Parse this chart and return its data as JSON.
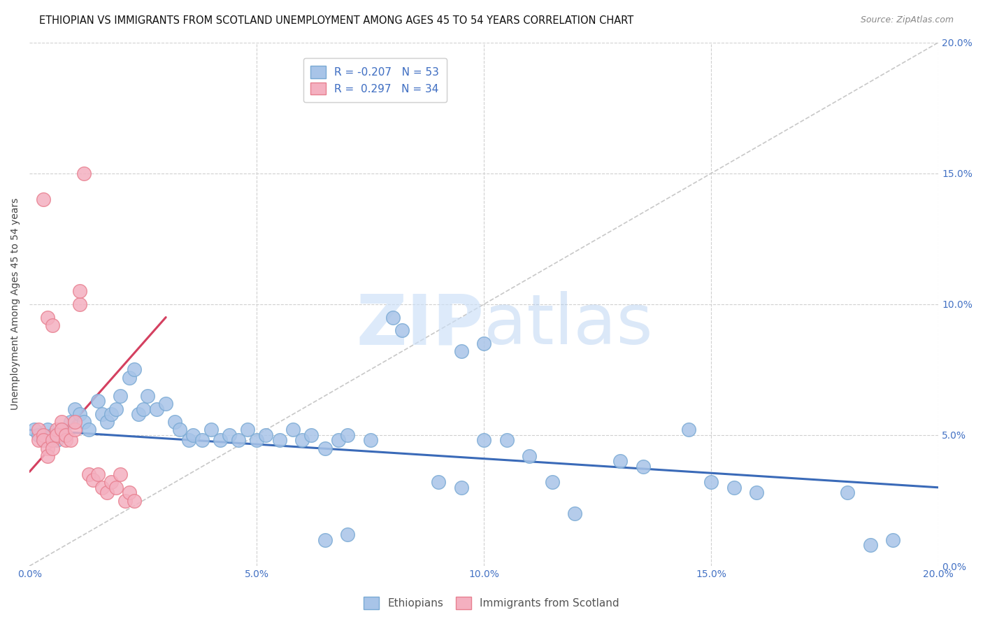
{
  "title": "ETHIOPIAN VS IMMIGRANTS FROM SCOTLAND UNEMPLOYMENT AMONG AGES 45 TO 54 YEARS CORRELATION CHART",
  "source": "Source: ZipAtlas.com",
  "ylabel_label": "Unemployment Among Ages 45 to 54 years",
  "xlim": [
    0.0,
    0.2
  ],
  "ylim": [
    0.0,
    0.2
  ],
  "tick_vals": [
    0.0,
    0.05,
    0.1,
    0.15,
    0.2
  ],
  "tick_labels": [
    "0.0%",
    "5.0%",
    "10.0%",
    "15.0%",
    "20.0%"
  ],
  "blue_line": [
    [
      0.0,
      0.052
    ],
    [
      0.2,
      0.03
    ]
  ],
  "pink_line": [
    [
      0.0,
      0.036
    ],
    [
      0.03,
      0.095
    ]
  ],
  "watermark_zip": "ZIP",
  "watermark_atlas": "atlas",
  "eth_scatter": [
    [
      0.001,
      0.052
    ],
    [
      0.002,
      0.05
    ],
    [
      0.003,
      0.048
    ],
    [
      0.004,
      0.052
    ],
    [
      0.005,
      0.05
    ],
    [
      0.006,
      0.048
    ],
    [
      0.007,
      0.052
    ],
    [
      0.008,
      0.05
    ],
    [
      0.009,
      0.055
    ],
    [
      0.01,
      0.06
    ],
    [
      0.011,
      0.058
    ],
    [
      0.012,
      0.055
    ],
    [
      0.013,
      0.052
    ],
    [
      0.015,
      0.063
    ],
    [
      0.016,
      0.058
    ],
    [
      0.017,
      0.055
    ],
    [
      0.018,
      0.058
    ],
    [
      0.019,
      0.06
    ],
    [
      0.02,
      0.065
    ],
    [
      0.022,
      0.072
    ],
    [
      0.023,
      0.075
    ],
    [
      0.024,
      0.058
    ],
    [
      0.025,
      0.06
    ],
    [
      0.026,
      0.065
    ],
    [
      0.028,
      0.06
    ],
    [
      0.03,
      0.062
    ],
    [
      0.032,
      0.055
    ],
    [
      0.033,
      0.052
    ],
    [
      0.035,
      0.048
    ],
    [
      0.036,
      0.05
    ],
    [
      0.038,
      0.048
    ],
    [
      0.04,
      0.052
    ],
    [
      0.042,
      0.048
    ],
    [
      0.044,
      0.05
    ],
    [
      0.046,
      0.048
    ],
    [
      0.048,
      0.052
    ],
    [
      0.05,
      0.048
    ],
    [
      0.052,
      0.05
    ],
    [
      0.055,
      0.048
    ],
    [
      0.058,
      0.052
    ],
    [
      0.06,
      0.048
    ],
    [
      0.062,
      0.05
    ],
    [
      0.065,
      0.045
    ],
    [
      0.068,
      0.048
    ],
    [
      0.07,
      0.05
    ],
    [
      0.075,
      0.048
    ],
    [
      0.08,
      0.095
    ],
    [
      0.082,
      0.09
    ],
    [
      0.095,
      0.082
    ],
    [
      0.1,
      0.085
    ],
    [
      0.1,
      0.048
    ],
    [
      0.105,
      0.048
    ],
    [
      0.11,
      0.042
    ],
    [
      0.115,
      0.032
    ],
    [
      0.12,
      0.02
    ],
    [
      0.145,
      0.052
    ],
    [
      0.155,
      0.03
    ],
    [
      0.16,
      0.028
    ],
    [
      0.18,
      0.028
    ],
    [
      0.19,
      0.01
    ],
    [
      0.065,
      0.01
    ],
    [
      0.07,
      0.012
    ],
    [
      0.09,
      0.032
    ],
    [
      0.095,
      0.03
    ],
    [
      0.13,
      0.04
    ],
    [
      0.135,
      0.038
    ],
    [
      0.15,
      0.032
    ],
    [
      0.185,
      0.008
    ]
  ],
  "sco_scatter": [
    [
      0.002,
      0.052
    ],
    [
      0.002,
      0.048
    ],
    [
      0.003,
      0.05
    ],
    [
      0.003,
      0.048
    ],
    [
      0.004,
      0.045
    ],
    [
      0.004,
      0.042
    ],
    [
      0.005,
      0.048
    ],
    [
      0.005,
      0.045
    ],
    [
      0.006,
      0.052
    ],
    [
      0.006,
      0.05
    ],
    [
      0.007,
      0.055
    ],
    [
      0.007,
      0.052
    ],
    [
      0.008,
      0.048
    ],
    [
      0.008,
      0.05
    ],
    [
      0.009,
      0.048
    ],
    [
      0.01,
      0.052
    ],
    [
      0.01,
      0.055
    ],
    [
      0.011,
      0.1
    ],
    [
      0.011,
      0.105
    ],
    [
      0.012,
      0.15
    ],
    [
      0.013,
      0.035
    ],
    [
      0.014,
      0.033
    ],
    [
      0.015,
      0.035
    ],
    [
      0.016,
      0.03
    ],
    [
      0.017,
      0.028
    ],
    [
      0.018,
      0.032
    ],
    [
      0.019,
      0.03
    ],
    [
      0.02,
      0.035
    ],
    [
      0.003,
      0.14
    ],
    [
      0.004,
      0.095
    ],
    [
      0.005,
      0.092
    ],
    [
      0.021,
      0.025
    ],
    [
      0.022,
      0.028
    ],
    [
      0.023,
      0.025
    ]
  ],
  "blue_scatter_color": "#a8c4e8",
  "blue_edge_color": "#7aaad4",
  "pink_scatter_color": "#f4b0c0",
  "pink_edge_color": "#e88090",
  "blue_line_color": "#3a6ab8",
  "pink_line_color": "#d44060",
  "diag_line_color": "#c8c8c8",
  "grid_color": "#d0d0d0",
  "tick_color": "#4472c4",
  "background_color": "#ffffff",
  "title_fontsize": 10.5,
  "ylabel_fontsize": 10,
  "tick_fontsize": 10,
  "source_fontsize": 9
}
